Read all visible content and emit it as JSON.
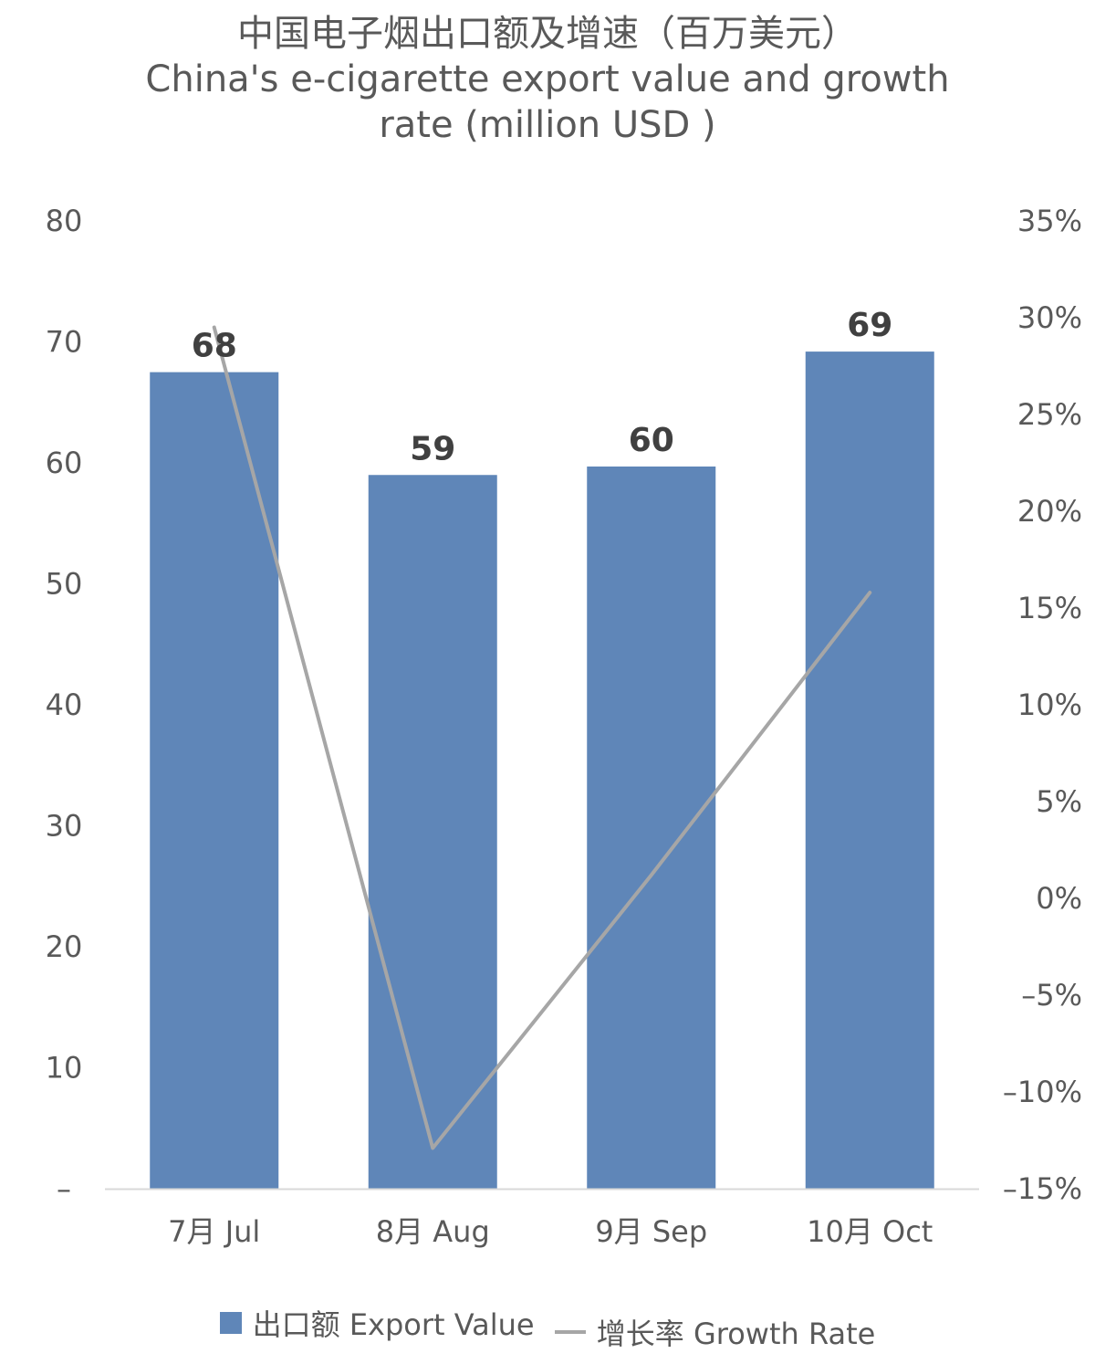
{
  "chart_data": {
    "type": "bar",
    "title_lines": [
      "中国电子烟出口额及增速（百万美元）",
      "China's e-cigarette export value and growth",
      "rate (million USD )"
    ],
    "categories": [
      "7月 Jul",
      "8月 Aug",
      "9月 Sep",
      "10月 Oct"
    ],
    "series": [
      {
        "name": "出口额 Export Value",
        "kind": "bar",
        "axis": "left",
        "values": [
          67.5,
          59,
          59.7,
          69.2
        ],
        "data_labels": [
          "68",
          "59",
          "60",
          "69"
        ]
      },
      {
        "name": "增长率 Growth Rate",
        "kind": "line",
        "axis": "right",
        "values": [
          29.5,
          -12.9,
          1.2,
          15.8
        ]
      }
    ],
    "y_left": {
      "min": 0,
      "max": 80,
      "ticks": [
        0,
        10,
        20,
        30,
        40,
        50,
        60,
        70,
        80
      ],
      "tick_labels": [
        "–",
        "10",
        "20",
        "30",
        "40",
        "50",
        "60",
        "70",
        "80"
      ]
    },
    "y_right": {
      "min": -15,
      "max": 35,
      "ticks": [
        -15,
        -10,
        -5,
        0,
        5,
        10,
        15,
        20,
        25,
        30,
        35
      ],
      "tick_labels": [
        "–15%",
        "–10%",
        "–5%",
        "0%",
        "5%",
        "10%",
        "15%",
        "20%",
        "25%",
        "30%",
        "35%"
      ]
    },
    "colors": {
      "bar": "#5f86b8",
      "line": "#a6a6a6",
      "axis": "#d9d9d9"
    },
    "grid": false,
    "legend_position": "bottom"
  }
}
